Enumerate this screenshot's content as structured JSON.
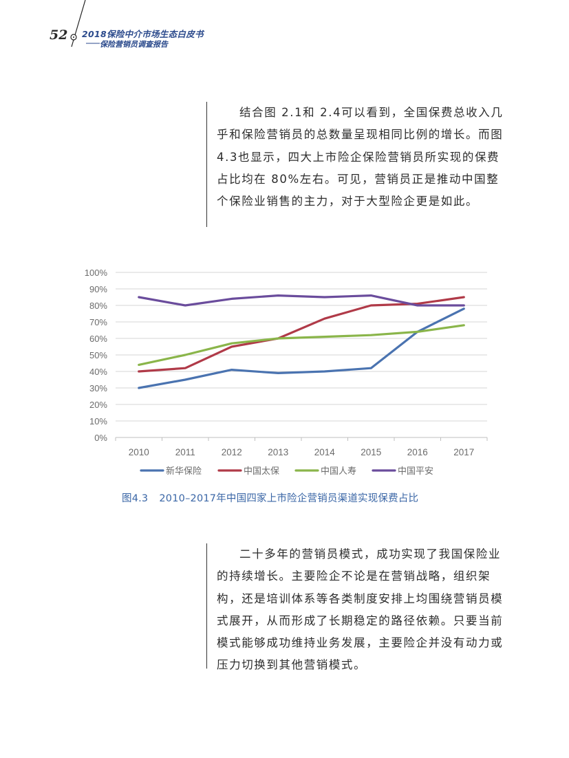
{
  "header": {
    "page_number": "52",
    "book_title": "2018保险中介市场生态白皮书",
    "book_subtitle": "——保险营销员调查报告"
  },
  "paragraphs": [
    "结合图 2.1和 2.4可以看到，全国保费总收入几乎和保险营销员的总数量呈现相同比例的增长。而图 4.3也显示，四大上市险企保险营销员所实现的保费占比均在 80%左右。可见，营销员正是推动中国整个保险业销售的主力，对于大型险企更是如此。",
    "二十多年的营销员模式，成功实现了我国保险业的持续增长。主要险企不论是在营销战略，组织架构，还是培训体系等各类制度安排上均围绕营销员模式展开，从而形成了长期稳定的路径依赖。只要当前模式能够成功维持业务发展，主要险企并没有动力或压力切换到其他营销模式。"
  ],
  "figure": {
    "number": "图4.3",
    "title": "2010–2017年中国四家上市险企营销员渠道实现保费占比"
  },
  "chart_data": {
    "type": "line",
    "title": "2010–2017年中国四家上市险企营销员渠道实现保费占比",
    "xlabel": "",
    "ylabel": "",
    "categories": [
      "2010",
      "2011",
      "2012",
      "2013",
      "2014",
      "2015",
      "2016",
      "2017"
    ],
    "y_ticks": [
      "0%",
      "10%",
      "20%",
      "30%",
      "40%",
      "50%",
      "60%",
      "70%",
      "80%",
      "90%",
      "100%"
    ],
    "ylim": [
      0,
      100
    ],
    "grid": true,
    "legend_position": "bottom",
    "series": [
      {
        "name": "新华保险",
        "color": "#4a73b0",
        "values": [
          30,
          35,
          41,
          39,
          40,
          42,
          64,
          78
        ]
      },
      {
        "name": "中国太保",
        "color": "#b03a48",
        "values": [
          40,
          42,
          55,
          60,
          72,
          80,
          81,
          85
        ]
      },
      {
        "name": "中国人寿",
        "color": "#8ab54a",
        "values": [
          44,
          50,
          57,
          60,
          61,
          62,
          64,
          68
        ]
      },
      {
        "name": "中国平安",
        "color": "#6a4c9c",
        "values": [
          85,
          80,
          84,
          86,
          85,
          86,
          80,
          80
        ]
      }
    ]
  }
}
